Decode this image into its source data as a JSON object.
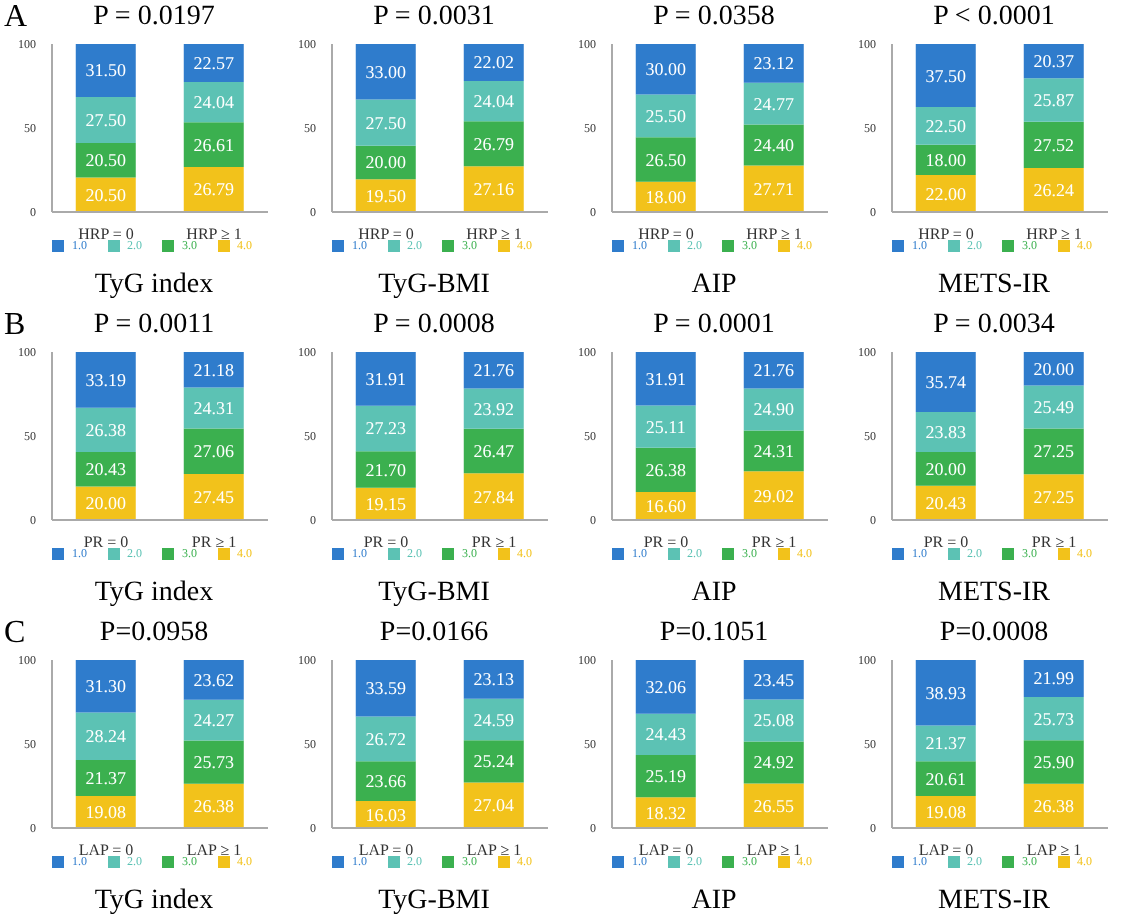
{
  "chart_data": [
    {
      "type": "bar",
      "stacked": true,
      "title": "P = 0.0197",
      "xlabel": "TyG index",
      "annotations": [
        "A"
      ],
      "categories": [
        "HRP = 0",
        "HRP ≥ 1"
      ],
      "ylim": [
        0,
        100
      ],
      "yticks": [
        0,
        50,
        100
      ],
      "legend": "bottom",
      "series": [
        {
          "name": "4.0",
          "color": "#f2c21b",
          "values": [
            20.5,
            26.79
          ],
          "value_labels": [
            "20.50",
            "26.79"
          ]
        },
        {
          "name": "3.0",
          "color": "#3bb04f",
          "values": [
            20.5,
            26.61
          ],
          "value_labels": [
            "20.50",
            "26.61"
          ]
        },
        {
          "name": "2.0",
          "color": "#5cc2b4",
          "values": [
            27.5,
            24.04
          ],
          "value_labels": [
            "27.50",
            "24.04"
          ]
        },
        {
          "name": "1.0",
          "color": "#2f7ccc",
          "values": [
            31.5,
            22.57
          ],
          "value_labels": [
            "31.50",
            "22.57"
          ]
        }
      ]
    },
    {
      "type": "bar",
      "stacked": true,
      "title": "P = 0.0031",
      "xlabel": "TyG-BMI",
      "categories": [
        "HRP = 0",
        "HRP ≥ 1"
      ],
      "ylim": [
        0,
        100
      ],
      "yticks": [
        0,
        50,
        100
      ],
      "legend": "bottom",
      "series": [
        {
          "name": "4.0",
          "color": "#f2c21b",
          "values": [
            19.5,
            27.16
          ],
          "value_labels": [
            "19.50",
            "27.16"
          ]
        },
        {
          "name": "3.0",
          "color": "#3bb04f",
          "values": [
            20.0,
            26.79
          ],
          "value_labels": [
            "20.00",
            "26.79"
          ]
        },
        {
          "name": "2.0",
          "color": "#5cc2b4",
          "values": [
            27.5,
            24.04
          ],
          "value_labels": [
            "27.50",
            "24.04"
          ]
        },
        {
          "name": "1.0",
          "color": "#2f7ccc",
          "values": [
            33.0,
            22.02
          ],
          "value_labels": [
            "33.00",
            "22.02"
          ]
        }
      ]
    },
    {
      "type": "bar",
      "stacked": true,
      "title": "P = 0.0358",
      "xlabel": "AIP",
      "categories": [
        "HRP = 0",
        "HRP ≥ 1"
      ],
      "ylim": [
        0,
        100
      ],
      "yticks": [
        0,
        50,
        100
      ],
      "legend": "bottom",
      "series": [
        {
          "name": "4.0",
          "color": "#f2c21b",
          "values": [
            18.0,
            27.71
          ],
          "value_labels": [
            "18.00",
            "27.71"
          ]
        },
        {
          "name": "3.0",
          "color": "#3bb04f",
          "values": [
            26.5,
            24.4
          ],
          "value_labels": [
            "26.50",
            "24.40"
          ]
        },
        {
          "name": "2.0",
          "color": "#5cc2b4",
          "values": [
            25.5,
            24.77
          ],
          "value_labels": [
            "25.50",
            "24.77"
          ]
        },
        {
          "name": "1.0",
          "color": "#2f7ccc",
          "values": [
            30.0,
            23.12
          ],
          "value_labels": [
            "30.00",
            "23.12"
          ]
        }
      ]
    },
    {
      "type": "bar",
      "stacked": true,
      "title": "P < 0.0001",
      "xlabel": "METS-IR",
      "categories": [
        "HRP = 0",
        "HRP ≥ 1"
      ],
      "ylim": [
        0,
        100
      ],
      "yticks": [
        0,
        50,
        100
      ],
      "legend": "bottom",
      "series": [
        {
          "name": "4.0",
          "color": "#f2c21b",
          "values": [
            22.0,
            26.24
          ],
          "value_labels": [
            "22.00",
            "26.24"
          ]
        },
        {
          "name": "3.0",
          "color": "#3bb04f",
          "values": [
            18.0,
            27.52
          ],
          "value_labels": [
            "18.00",
            "27.52"
          ]
        },
        {
          "name": "2.0",
          "color": "#5cc2b4",
          "values": [
            22.5,
            25.87
          ],
          "value_labels": [
            "22.50",
            "25.87"
          ]
        },
        {
          "name": "1.0",
          "color": "#2f7ccc",
          "values": [
            37.5,
            20.37
          ],
          "value_labels": [
            "37.50",
            "20.37"
          ]
        }
      ]
    },
    {
      "type": "bar",
      "stacked": true,
      "title": "P = 0.0011",
      "xlabel": "TyG index",
      "annotations": [
        "B"
      ],
      "categories": [
        "PR = 0",
        "PR ≥ 1"
      ],
      "ylim": [
        0,
        100
      ],
      "yticks": [
        0,
        50,
        100
      ],
      "legend": "bottom",
      "series": [
        {
          "name": "4.0",
          "color": "#f2c21b",
          "values": [
            20.0,
            27.45
          ],
          "value_labels": [
            "20.00",
            "27.45"
          ]
        },
        {
          "name": "3.0",
          "color": "#3bb04f",
          "values": [
            20.43,
            27.06
          ],
          "value_labels": [
            "20.43",
            "27.06"
          ]
        },
        {
          "name": "2.0",
          "color": "#5cc2b4",
          "values": [
            26.38,
            24.31
          ],
          "value_labels": [
            "26.38",
            "24.31"
          ]
        },
        {
          "name": "1.0",
          "color": "#2f7ccc",
          "values": [
            33.19,
            21.18
          ],
          "value_labels": [
            "33.19",
            "21.18"
          ]
        }
      ]
    },
    {
      "type": "bar",
      "stacked": true,
      "title": "P = 0.0008",
      "xlabel": "TyG-BMI",
      "categories": [
        "PR = 0",
        "PR ≥ 1"
      ],
      "ylim": [
        0,
        100
      ],
      "yticks": [
        0,
        50,
        100
      ],
      "legend": "bottom",
      "series": [
        {
          "name": "4.0",
          "color": "#f2c21b",
          "values": [
            19.15,
            27.84
          ],
          "value_labels": [
            "19.15",
            "27.84"
          ]
        },
        {
          "name": "3.0",
          "color": "#3bb04f",
          "values": [
            21.7,
            26.47
          ],
          "value_labels": [
            "21.70",
            "26.47"
          ]
        },
        {
          "name": "2.0",
          "color": "#5cc2b4",
          "values": [
            27.23,
            23.92
          ],
          "value_labels": [
            "27.23",
            "23.92"
          ]
        },
        {
          "name": "1.0",
          "color": "#2f7ccc",
          "values": [
            31.91,
            21.76
          ],
          "value_labels": [
            "31.91",
            "21.76"
          ]
        }
      ]
    },
    {
      "type": "bar",
      "stacked": true,
      "title": "P = 0.0001",
      "xlabel": "AIP",
      "categories": [
        "PR = 0",
        "PR ≥ 1"
      ],
      "ylim": [
        0,
        100
      ],
      "yticks": [
        0,
        50,
        100
      ],
      "legend": "bottom",
      "series": [
        {
          "name": "4.0",
          "color": "#f2c21b",
          "values": [
            16.6,
            29.02
          ],
          "value_labels": [
            "16.60",
            "29.02"
          ]
        },
        {
          "name": "3.0",
          "color": "#3bb04f",
          "values": [
            26.38,
            24.31
          ],
          "value_labels": [
            "26.38",
            "24.31"
          ]
        },
        {
          "name": "2.0",
          "color": "#5cc2b4",
          "values": [
            25.11,
            24.9
          ],
          "value_labels": [
            "25.11",
            "24.90"
          ]
        },
        {
          "name": "1.0",
          "color": "#2f7ccc",
          "values": [
            31.91,
            21.76
          ],
          "value_labels": [
            "31.91",
            "21.76"
          ]
        }
      ]
    },
    {
      "type": "bar",
      "stacked": true,
      "title": "P = 0.0034",
      "xlabel": "METS-IR",
      "categories": [
        "PR = 0",
        "PR ≥ 1"
      ],
      "ylim": [
        0,
        100
      ],
      "yticks": [
        0,
        50,
        100
      ],
      "legend": "bottom",
      "series": [
        {
          "name": "4.0",
          "color": "#f2c21b",
          "values": [
            20.43,
            27.25
          ],
          "value_labels": [
            "20.43",
            "27.25"
          ]
        },
        {
          "name": "3.0",
          "color": "#3bb04f",
          "values": [
            20.0,
            27.25
          ],
          "value_labels": [
            "20.00",
            "27.25"
          ]
        },
        {
          "name": "2.0",
          "color": "#5cc2b4",
          "values": [
            23.83,
            25.49
          ],
          "value_labels": [
            "23.83",
            "25.49"
          ]
        },
        {
          "name": "1.0",
          "color": "#2f7ccc",
          "values": [
            35.74,
            20.0
          ],
          "value_labels": [
            "35.74",
            "20.00"
          ]
        }
      ]
    },
    {
      "type": "bar",
      "stacked": true,
      "title": "P=0.0958",
      "xlabel": "TyG index",
      "annotations": [
        "C"
      ],
      "categories": [
        "LAP = 0",
        "LAP ≥ 1"
      ],
      "ylim": [
        0,
        100
      ],
      "yticks": [
        0,
        50,
        100
      ],
      "legend": "bottom",
      "series": [
        {
          "name": "4.0",
          "color": "#f2c21b",
          "values": [
            19.08,
            26.38
          ],
          "value_labels": [
            "19.08",
            "26.38"
          ]
        },
        {
          "name": "3.0",
          "color": "#3bb04f",
          "values": [
            21.37,
            25.73
          ],
          "value_labels": [
            "21.37",
            "25.73"
          ]
        },
        {
          "name": "2.0",
          "color": "#5cc2b4",
          "values": [
            28.24,
            24.27
          ],
          "value_labels": [
            "28.24",
            "24.27"
          ]
        },
        {
          "name": "1.0",
          "color": "#2f7ccc",
          "values": [
            31.3,
            23.62
          ],
          "value_labels": [
            "31.30",
            "23.62"
          ]
        }
      ]
    },
    {
      "type": "bar",
      "stacked": true,
      "title": "P=0.0166",
      "xlabel": "TyG-BMI",
      "categories": [
        "LAP = 0",
        "LAP ≥ 1"
      ],
      "ylim": [
        0,
        100
      ],
      "yticks": [
        0,
        50,
        100
      ],
      "legend": "bottom",
      "series": [
        {
          "name": "4.0",
          "color": "#f2c21b",
          "values": [
            16.03,
            27.04
          ],
          "value_labels": [
            "16.03",
            "27.04"
          ]
        },
        {
          "name": "3.0",
          "color": "#3bb04f",
          "values": [
            23.66,
            25.24
          ],
          "value_labels": [
            "23.66",
            "25.24"
          ]
        },
        {
          "name": "2.0",
          "color": "#5cc2b4",
          "values": [
            26.72,
            24.59
          ],
          "value_labels": [
            "26.72",
            "24.59"
          ]
        },
        {
          "name": "1.0",
          "color": "#2f7ccc",
          "values": [
            33.59,
            23.13
          ],
          "value_labels": [
            "33.59",
            "23.13"
          ]
        }
      ]
    },
    {
      "type": "bar",
      "stacked": true,
      "title": "P=0.1051",
      "xlabel": "AIP",
      "categories": [
        "LAP = 0",
        "LAP ≥ 1"
      ],
      "ylim": [
        0,
        100
      ],
      "yticks": [
        0,
        50,
        100
      ],
      "legend": "bottom",
      "series": [
        {
          "name": "4.0",
          "color": "#f2c21b",
          "values": [
            18.32,
            26.55
          ],
          "value_labels": [
            "18.32",
            "26.55"
          ]
        },
        {
          "name": "3.0",
          "color": "#3bb04f",
          "values": [
            25.19,
            24.92
          ],
          "value_labels": [
            "25.19",
            "24.92"
          ]
        },
        {
          "name": "2.0",
          "color": "#5cc2b4",
          "values": [
            24.43,
            25.08
          ],
          "value_labels": [
            "24.43",
            "25.08"
          ]
        },
        {
          "name": "1.0",
          "color": "#2f7ccc",
          "values": [
            32.06,
            23.45
          ],
          "value_labels": [
            "32.06",
            "23.45"
          ]
        }
      ]
    },
    {
      "type": "bar",
      "stacked": true,
      "title": "P=0.0008",
      "xlabel": "METS-IR",
      "categories": [
        "LAP = 0",
        "LAP ≥ 1"
      ],
      "ylim": [
        0,
        100
      ],
      "yticks": [
        0,
        50,
        100
      ],
      "legend": "bottom",
      "series": [
        {
          "name": "4.0",
          "color": "#f2c21b",
          "values": [
            19.08,
            26.38
          ],
          "value_labels": [
            "19.08",
            "26.38"
          ]
        },
        {
          "name": "3.0",
          "color": "#3bb04f",
          "values": [
            20.61,
            25.9
          ],
          "value_labels": [
            "20.61",
            "25.90"
          ]
        },
        {
          "name": "2.0",
          "color": "#5cc2b4",
          "values": [
            21.37,
            25.73
          ],
          "value_labels": [
            "21.37",
            "25.73"
          ]
        },
        {
          "name": "1.0",
          "color": "#2f7ccc",
          "values": [
            38.93,
            21.99
          ],
          "value_labels": [
            "38.93",
            "21.99"
          ]
        }
      ]
    }
  ]
}
